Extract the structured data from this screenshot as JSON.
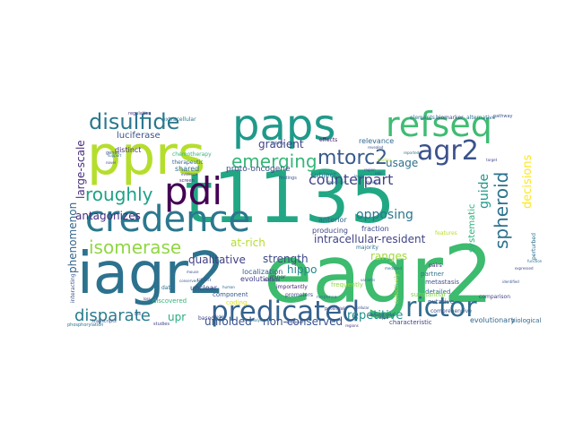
{
  "background_color": "#ffffff",
  "word_cloud": {
    "words": [
      {
        "text": "eagr2",
        "color": "#3dbb6e"
      },
      {
        "text": "t1135",
        "color": "#22a784"
      },
      {
        "text": "iagr2",
        "color": "#2c728e"
      },
      {
        "text": "pprs",
        "color": "#b4de2c"
      },
      {
        "text": "paps",
        "color": "#1f998a"
      },
      {
        "text": "credence",
        "color": "#2a788e"
      },
      {
        "text": "refseq",
        "color": "#3fbc73"
      },
      {
        "text": "predicated",
        "color": "#34618d"
      },
      {
        "text": "pdi",
        "color": "#440154"
      },
      {
        "text": "agr2",
        "color": "#3b528b"
      },
      {
        "text": "rictor",
        "color": "#2f6c8e"
      },
      {
        "text": "disulfide",
        "color": "#2a788e"
      },
      {
        "text": "mtorc2",
        "color": "#375a8c"
      },
      {
        "text": "emerging",
        "color": "#35b779"
      },
      {
        "text": "roughly",
        "color": "#1fa187"
      },
      {
        "text": "isomerase",
        "color": "#90d743"
      },
      {
        "text": "spheroid",
        "color": "#2c728e"
      },
      {
        "text": "disparate",
        "color": "#287d8e"
      },
      {
        "text": "counterpart",
        "color": "#404387"
      },
      {
        "text": "usage",
        "color": "#2d708e"
      },
      {
        "text": "guide",
        "color": "#1f9a8a"
      },
      {
        "text": "decisions",
        "color": "#fde725"
      },
      {
        "text": "gradient",
        "color": "#414487"
      },
      {
        "text": "large-scale",
        "color": "#472d7b"
      },
      {
        "text": "antagonizes",
        "color": "#46307e"
      },
      {
        "text": "qualitative",
        "color": "#424186"
      },
      {
        "text": "strength",
        "color": "#3e4a89"
      },
      {
        "text": "at-rich",
        "color": "#b5de2b"
      },
      {
        "text": "intracellular-resident",
        "color": "#414487"
      },
      {
        "text": "opposing",
        "color": "#2a768e"
      },
      {
        "text": "hippo",
        "color": "#24878e"
      },
      {
        "text": "ranges",
        "color": "#a2da37"
      },
      {
        "text": "repetitive",
        "color": "#21918c"
      },
      {
        "text": "systematic",
        "color": "#2db27d"
      },
      {
        "text": "phenomenon",
        "color": "#33638d"
      },
      {
        "text": "upr",
        "color": "#26ad81"
      },
      {
        "text": "unfolded",
        "color": "#3a538b"
      },
      {
        "text": "non-conserved",
        "color": "#3a548c"
      },
      {
        "text": "proto-oncogene",
        "color": "#3c4f8a"
      },
      {
        "text": "luciferase",
        "color": "#3b518b"
      },
      {
        "text": "extracellular",
        "color": "#2a788e"
      },
      {
        "text": "therapeutic",
        "color": "#31688e"
      },
      {
        "text": "chemotherapy",
        "color": "#35b779"
      },
      {
        "text": "distinct",
        "color": "#46327e"
      },
      {
        "text": "shared",
        "color": "#2e6e8e"
      },
      {
        "text": "unclear",
        "color": "#3e4989"
      },
      {
        "text": "localization",
        "color": "#34608d"
      },
      {
        "text": "evolution",
        "color": "#424186"
      },
      {
        "text": "producing",
        "color": "#3f4788"
      },
      {
        "text": "anterior",
        "color": "#33638d"
      },
      {
        "text": "fraction",
        "color": "#3e4c8a"
      },
      {
        "text": "relevance",
        "color": "#31688e"
      },
      {
        "text": "metastasis",
        "color": "#3b518b"
      },
      {
        "text": "partner",
        "color": "#2b748e"
      },
      {
        "text": "detailed",
        "color": "#2f6b8e"
      },
      {
        "text": "putative",
        "color": "#365c8d"
      },
      {
        "text": "comprehensive",
        "color": "#3b528b"
      },
      {
        "text": "evolutionary",
        "color": "#31678e"
      },
      {
        "text": "biological",
        "color": "#306a8e"
      },
      {
        "text": "comparison",
        "color": "#414487"
      },
      {
        "text": "alternative",
        "color": "#2c728e"
      },
      {
        "text": "biomarker",
        "color": "#3e4989"
      },
      {
        "text": "elements",
        "color": "#2c718e"
      },
      {
        "text": "pathway",
        "color": "#3a548c"
      },
      {
        "text": "regulation",
        "color": "#443983"
      },
      {
        "text": "subject",
        "color": "#2a788e"
      },
      {
        "text": "majority",
        "color": "#2e6f8e"
      },
      {
        "text": "characteristic",
        "color": "#404588"
      },
      {
        "text": "importantly",
        "color": "#482475"
      },
      {
        "text": "minor",
        "color": "#443a83"
      },
      {
        "text": "pairs",
        "color": "#472f7d"
      },
      {
        "text": "features",
        "color": "#b8de29"
      },
      {
        "text": "frequently",
        "color": "#8fd744"
      },
      {
        "text": "discovered",
        "color": "#32b67a"
      },
      {
        "text": "interacting",
        "color": "#3b528b"
      },
      {
        "text": "component",
        "color": "#375a8c"
      },
      {
        "text": "coding",
        "color": "#dde318"
      },
      {
        "text": "promoters",
        "color": "#404387"
      },
      {
        "text": "data",
        "color": "#2c718e"
      },
      {
        "text": "upon",
        "color": "#38598c"
      },
      {
        "text": "based",
        "color": "#3f4788"
      },
      {
        "text": "effects",
        "color": "#48186a"
      },
      {
        "text": "encode",
        "color": "#443983"
      },
      {
        "text": "findings",
        "color": "#3a548c"
      },
      {
        "text": "response",
        "color": "#2a788e"
      },
      {
        "text": "potential",
        "color": "#404387"
      },
      {
        "text": "collectively",
        "color": "#addc30"
      },
      {
        "text": "perturbed",
        "color": "#2c728e"
      },
      {
        "text": "substantial",
        "color": "#84d44b"
      },
      {
        "text": "phosphorylation",
        "color": "#2c728e"
      },
      {
        "text": "transcripts",
        "color": "#3b528b"
      },
      {
        "text": "studies",
        "color": "#424086"
      },
      {
        "text": "genes",
        "color": "#3a548c"
      },
      {
        "text": "screen",
        "color": "#46337f"
      },
      {
        "text": "cellular",
        "color": "#3f4889"
      },
      {
        "text": "analysis",
        "color": "#2c728e"
      },
      {
        "text": "demonstrated",
        "color": "#423f85"
      },
      {
        "text": "mediated",
        "color": "#31678e"
      },
      {
        "text": "revealed",
        "color": "#3c508b"
      },
      {
        "text": "levels",
        "color": "#2e6f8e"
      },
      {
        "text": "binding",
        "color": "#b2dd2d"
      },
      {
        "text": "models",
        "color": "#365c8d"
      },
      {
        "text": "sequence",
        "color": "#3e4c8a"
      },
      {
        "text": "regions",
        "color": "#453781"
      },
      {
        "text": "identified",
        "color": "#39568c"
      },
      {
        "text": "function",
        "color": "#2c718e"
      },
      {
        "text": "expressed",
        "color": "#404588"
      },
      {
        "text": "loss",
        "color": "#472c7a"
      },
      {
        "text": "mouse",
        "color": "#3b528b"
      },
      {
        "text": "conserved",
        "color": "#375b8d"
      },
      {
        "text": "human",
        "color": "#31688e"
      },
      {
        "text": "dependent",
        "color": "#2a788e"
      },
      {
        "text": "family",
        "color": "#3e4989"
      },
      {
        "text": "evidence",
        "color": "#433e85"
      },
      {
        "text": "activity",
        "color": "#38588c"
      },
      {
        "text": "reported",
        "color": "#2f6c8e"
      },
      {
        "text": "target",
        "color": "#414487"
      },
      {
        "text": "role",
        "color": "#3d4d8a"
      },
      {
        "text": "support",
        "color": "#2b758e"
      },
      {
        "text": "novel",
        "color": "#423f85"
      },
      {
        "text": "region",
        "color": "#3a548c"
      },
      {
        "text": "variants",
        "color": "#2c728e"
      },
      {
        "text": "type",
        "color": "#404588"
      },
      {
        "text": "cell",
        "color": "#472d7b"
      }
    ]
  }
}
